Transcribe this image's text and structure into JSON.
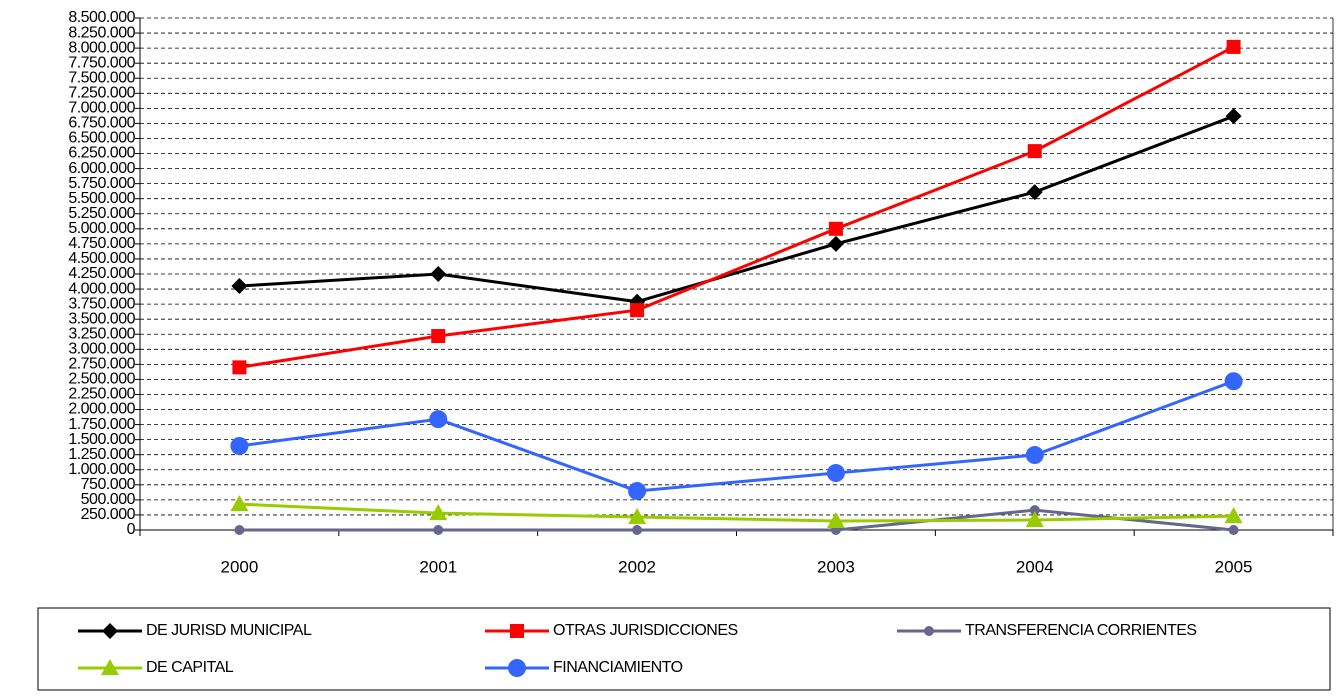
{
  "chart_data": {
    "type": "line",
    "categories": [
      "2000",
      "2001",
      "2002",
      "2003",
      "2004",
      "2005"
    ],
    "series": [
      {
        "name": "DE JURISD MUNICIPAL",
        "color": "#000000",
        "marker": "diamond",
        "values": [
          4050000,
          4250000,
          3790000,
          4750000,
          5610000,
          6870000
        ]
      },
      {
        "name": "OTRAS JURISDICCIONES",
        "color": "#ff0000",
        "marker": "square",
        "values": [
          2700000,
          3220000,
          3650000,
          5000000,
          6290000,
          8020000
        ]
      },
      {
        "name": "TRANSFERENCIA CORRIENTES",
        "color": "#66668f",
        "marker": "small-circle",
        "values": [
          0,
          0,
          0,
          0,
          330000,
          0
        ]
      },
      {
        "name": "DE CAPITAL",
        "color": "#99cc00",
        "marker": "triangle",
        "values": [
          430000,
          280000,
          215000,
          150000,
          166000,
          230000
        ]
      },
      {
        "name": "FINANCIAMIENTO",
        "color": "#3366ff",
        "marker": "circle",
        "values": [
          1395000,
          1840000,
          647000,
          946000,
          1245000,
          2470000
        ]
      }
    ],
    "ylim": [
      0,
      8500000
    ],
    "yticks": [
      0,
      {
        "value": 250000,
        "label": "250.000"
      },
      {
        "value": 500000,
        "label": "500.000"
      },
      {
        "value": 750000,
        "label": "750.000"
      },
      {
        "value": 1000000,
        "label": "1.000.000"
      },
      {
        "value": 1250000,
        "label": "1.250.000"
      },
      {
        "value": 1500000,
        "label": "1.500.000"
      },
      {
        "value": 1750000,
        "label": "1.750.000"
      },
      {
        "value": 2000000,
        "label": "2.000.000"
      },
      {
        "value": 2250000,
        "label": "2.250.000"
      },
      {
        "value": 2500000,
        "label": "2.500.000"
      },
      {
        "value": 2750000,
        "label": "2.750.000"
      },
      {
        "value": 3000000,
        "label": "3.000.000"
      },
      {
        "value": 3250000,
        "label": "3.250.000"
      },
      {
        "value": 3500000,
        "label": "3.500.000"
      },
      {
        "value": 3750000,
        "label": "3.750.000"
      },
      {
        "value": 4000000,
        "label": "4.000.000"
      },
      {
        "value": 4250000,
        "label": "4.250.000"
      },
      {
        "value": 4500000,
        "label": "4.500.000"
      },
      {
        "value": 4750000,
        "label": "4.750.000"
      },
      {
        "value": 5000000,
        "label": "5.000.000"
      },
      {
        "value": 5250000,
        "label": "5.250.000"
      },
      {
        "value": 5500000,
        "label": "5.500.000"
      },
      {
        "value": 5750000,
        "label": "5.750.000"
      },
      {
        "value": 6000000,
        "label": "6.000.000"
      },
      {
        "value": 6250000,
        "label": "6.250.000"
      },
      {
        "value": 6500000,
        "label": "6.500.000"
      },
      {
        "value": 6750000,
        "label": "6.750.000"
      },
      {
        "value": 7000000,
        "label": "7.000.000"
      },
      {
        "value": 7250000,
        "label": "7.250.000"
      },
      {
        "value": 7500000,
        "label": "7.500.000"
      },
      {
        "value": 7750000,
        "label": "7.750.000"
      },
      {
        "value": 8000000,
        "label": "8.000.000"
      },
      {
        "value": 8250000,
        "label": "8.250.000"
      },
      {
        "value": 8500000,
        "label": "8.500.000"
      }
    ],
    "grid": true,
    "legend": "bottom"
  }
}
